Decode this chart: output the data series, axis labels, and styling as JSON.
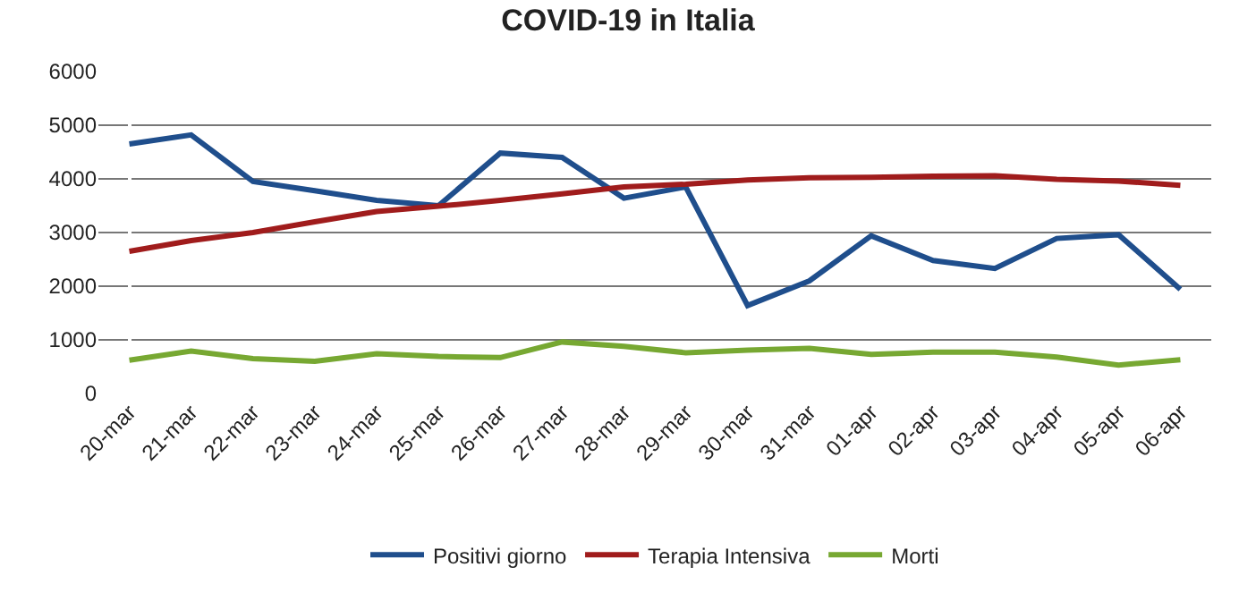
{
  "chart_data": {
    "type": "line",
    "title": "COVID-19 in Italia",
    "categories": [
      "20-mar",
      "21-mar",
      "22-mar",
      "23-mar",
      "24-mar",
      "25-mar",
      "26-mar",
      "27-mar",
      "28-mar",
      "29-mar",
      "30-mar",
      "31-mar",
      "01-apr",
      "02-apr",
      "03-apr",
      "04-apr",
      "05-apr",
      "06-apr"
    ],
    "series": [
      {
        "name": "Positivi giorno",
        "color": "#1f4e8c",
        "values": [
          4650,
          4820,
          3950,
          3780,
          3600,
          3500,
          4480,
          4400,
          3640,
          3850,
          1640,
          2100,
          2940,
          2480,
          2330,
          2890,
          2960,
          1940
        ]
      },
      {
        "name": "Terapia Intensiva",
        "color": "#a01c1c",
        "values": [
          2650,
          2850,
          3000,
          3200,
          3390,
          3490,
          3600,
          3720,
          3850,
          3900,
          3980,
          4020,
          4030,
          4050,
          4060,
          3990,
          3960,
          3880
        ]
      },
      {
        "name": "Morti",
        "color": "#77a832",
        "values": [
          620,
          790,
          650,
          600,
          740,
          690,
          670,
          960,
          880,
          760,
          810,
          840,
          730,
          770,
          770,
          680,
          530,
          630
        ]
      }
    ],
    "ylim": [
      0,
      6000
    ],
    "yticks": [
      0,
      1000,
      2000,
      3000,
      4000,
      5000,
      6000
    ],
    "grid": "y",
    "legend": "bottom",
    "marker": "none",
    "line_style": "solid"
  }
}
